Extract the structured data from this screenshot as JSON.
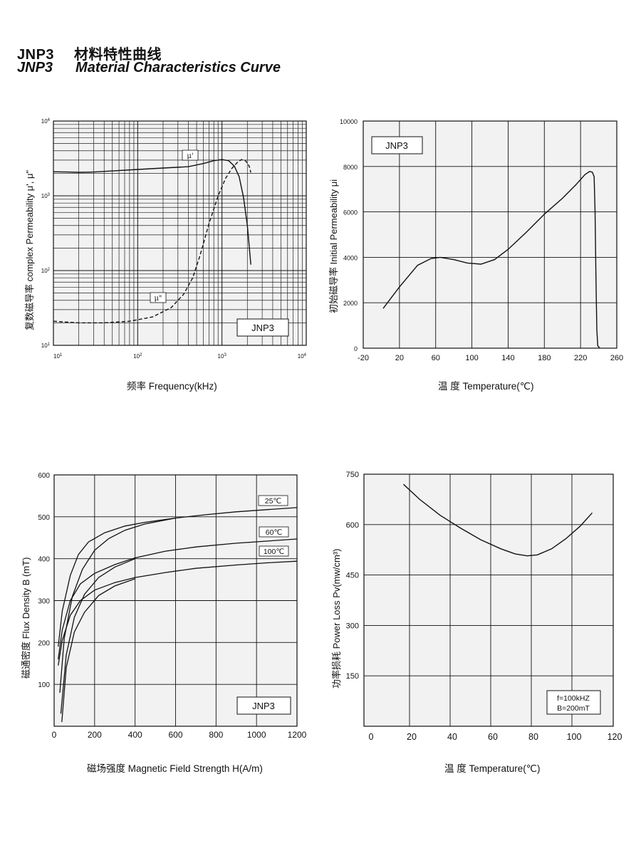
{
  "header": {
    "code_cn": "JNP3",
    "title_cn": "材料特性曲线",
    "code_en": "JNP3",
    "title_en": "Material Characteristics Curve"
  },
  "chart_data": [
    {
      "id": "permeability-frequency",
      "type": "line",
      "xscale": "log",
      "yscale": "log",
      "xlim": [
        10,
        10000
      ],
      "ylim": [
        10,
        10000
      ],
      "xticks": [
        "10¹",
        "10²",
        "10³",
        "10⁴"
      ],
      "yticks": [
        "10¹",
        "10²",
        "10³",
        "10⁴"
      ],
      "xlabel": "频率  Frequency(kHz)",
      "ylabel": "复数磁导率  complex  Permeability  μ', μ\"",
      "legend_box": "JNP3",
      "series": [
        {
          "name": "μ'",
          "style": "solid",
          "x": [
            10,
            15,
            20,
            30,
            50,
            100,
            200,
            400,
            600,
            800,
            1000,
            1200,
            1400,
            1600,
            1800,
            2000,
            2200
          ],
          "y": [
            2100,
            2080,
            2060,
            2080,
            2150,
            2250,
            2350,
            2450,
            2700,
            2950,
            3050,
            2950,
            2500,
            1800,
            950,
            400,
            120
          ]
        },
        {
          "name": "μ\"",
          "style": "dashed",
          "x": [
            10,
            20,
            40,
            80,
            150,
            250,
            350,
            450,
            550,
            700,
            900,
            1100,
            1300,
            1500,
            1700,
            1900,
            2100,
            2200
          ],
          "y": [
            21,
            20,
            20,
            21,
            24,
            32,
            48,
            80,
            160,
            420,
            1000,
            1700,
            2300,
            2750,
            3050,
            2950,
            2500,
            2050
          ]
        }
      ]
    },
    {
      "id": "permeability-temperature",
      "type": "line",
      "xlim": [
        -20,
        260
      ],
      "ylim": [
        0,
        10000
      ],
      "xticks": [
        "-20",
        "20",
        "60",
        "100",
        "140",
        "180",
        "220",
        "260"
      ],
      "yticks": [
        "0",
        "2000",
        "4000",
        "6000",
        "8000",
        "10000"
      ],
      "xlabel": "温  度  Temperature(℃)",
      "ylabel": "初始磁导率  Initial  Permeability  μi",
      "legend_box": "JNP3",
      "series": [
        {
          "name": "JNP3",
          "style": "solid",
          "x": [
            2,
            20,
            40,
            55,
            65,
            80,
            95,
            110,
            125,
            140,
            160,
            180,
            200,
            215,
            225,
            230,
            233,
            235,
            236,
            237,
            238,
            239,
            241
          ],
          "y": [
            1750,
            2700,
            3650,
            3950,
            4000,
            3900,
            3750,
            3700,
            3900,
            4350,
            5100,
            5900,
            6600,
            7200,
            7650,
            7780,
            7750,
            7550,
            6000,
            3000,
            800,
            100,
            20
          ]
        }
      ]
    },
    {
      "id": "bh-curve",
      "type": "line",
      "xlim": [
        0,
        1200
      ],
      "ylim": [
        0,
        600
      ],
      "xticks": [
        "0",
        "200",
        "400",
        "600",
        "800",
        "1000",
        "1200"
      ],
      "yticks": [
        "100",
        "200",
        "300",
        "400",
        "500",
        "600"
      ],
      "xlabel": "磁场强度  Magnetic Field Strength H(A/m)",
      "ylabel": "磁通密度  Flux Density B (mT)",
      "legend_box": "JNP3",
      "series": [
        {
          "name": "25℃",
          "style": "solid",
          "x": [
            20,
            40,
            80,
            120,
            170,
            250,
            350,
            450,
            600,
            750,
            900,
            1050,
            1200
          ],
          "y": [
            190,
            275,
            360,
            410,
            440,
            462,
            478,
            487,
            497,
            505,
            512,
            517,
            522
          ]
        },
        {
          "name": "25℃",
          "style": "solid",
          "x": [
            28,
            50,
            90,
            140,
            200,
            270,
            350,
            450,
            600
          ],
          "y": [
            80,
            210,
            310,
            375,
            420,
            448,
            468,
            483,
            497
          ]
        },
        {
          "name": "60℃",
          "style": "solid",
          "x": [
            20,
            40,
            80,
            130,
            200,
            300,
            400,
            550,
            700,
            900,
            1050,
            1200
          ],
          "y": [
            160,
            230,
            300,
            340,
            365,
            386,
            402,
            418,
            428,
            437,
            442,
            447
          ]
        },
        {
          "name": "60℃",
          "style": "solid",
          "x": [
            33,
            60,
            100,
            150,
            220,
            300,
            400
          ],
          "y": [
            30,
            170,
            260,
            315,
            355,
            380,
            400
          ]
        },
        {
          "name": "100℃",
          "style": "solid",
          "x": [
            20,
            40,
            80,
            130,
            200,
            300,
            400,
            550,
            700,
            900,
            1050,
            1200
          ],
          "y": [
            145,
            205,
            265,
            300,
            325,
            343,
            355,
            367,
            377,
            385,
            390,
            394
          ]
        },
        {
          "name": "100℃",
          "style": "solid",
          "x": [
            38,
            60,
            100,
            150,
            220,
            300,
            400
          ],
          "y": [
            10,
            140,
            225,
            272,
            312,
            335,
            352
          ]
        }
      ]
    },
    {
      "id": "power-loss-temperature",
      "type": "line",
      "xlim": [
        0,
        120
      ],
      "ylim": [
        0,
        750
      ],
      "xticks": [
        "0",
        "20",
        "40",
        "60",
        "80",
        "100",
        "120"
      ],
      "yticks": [
        "150",
        "300",
        "450",
        "600",
        "750"
      ],
      "xlabel": "温  度  Temperature(℃)",
      "ylabel": "功率损耗  Power  Loss  Pv(mw/cm³)",
      "legend_box": [
        "f=100kHZ",
        "B=200mT"
      ],
      "series": [
        {
          "name": "Pv",
          "style": "solid",
          "x": [
            17,
            25,
            35,
            45,
            55,
            65,
            72,
            78,
            83,
            90,
            97,
            104,
            110
          ],
          "y": [
            720,
            675,
            628,
            590,
            555,
            528,
            513,
            507,
            510,
            528,
            558,
            595,
            635
          ]
        }
      ]
    }
  ]
}
